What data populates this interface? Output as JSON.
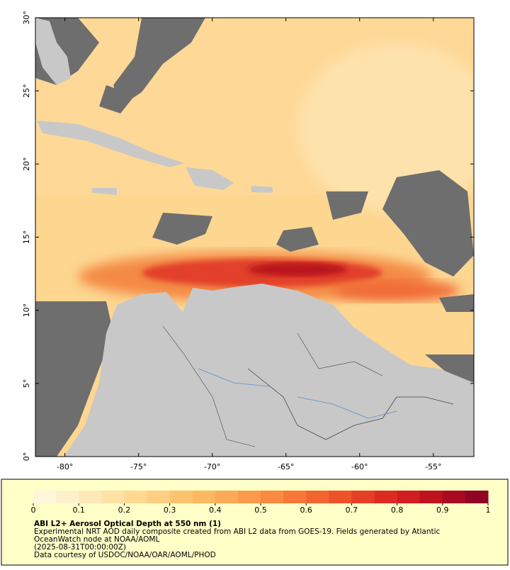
{
  "map": {
    "xlim": [
      -82,
      -52.25
    ],
    "ylim": [
      0,
      30
    ],
    "xticks": [
      {
        "value": -80,
        "label": "-80°"
      },
      {
        "value": -75,
        "label": "-75°"
      },
      {
        "value": -70,
        "label": "-70°"
      },
      {
        "value": -65,
        "label": "-65°"
      },
      {
        "value": -60,
        "label": "-60°"
      },
      {
        "value": -55,
        "label": "-55°"
      }
    ],
    "yticks": [
      {
        "value": 0,
        "label": "0°"
      },
      {
        "value": 5,
        "label": "5°"
      },
      {
        "value": 10,
        "label": "10°"
      },
      {
        "value": 15,
        "label": "15°"
      },
      {
        "value": 20,
        "label": "20°"
      },
      {
        "value": 25,
        "label": "25°"
      },
      {
        "value": 30,
        "label": "30°"
      }
    ]
  },
  "colorbar": {
    "lim": [
      0,
      1
    ],
    "ticks": [
      0,
      0.1,
      0.2,
      0.3,
      0.4,
      0.5,
      0.6,
      0.7,
      0.8,
      0.9,
      1
    ],
    "colors": [
      "#fff6dc",
      "#fff0cc",
      "#ffe9b8",
      "#ffe2a4",
      "#ffd992",
      "#fecf82",
      "#fdc470",
      "#fdb862",
      "#fcaa55",
      "#fb9a4a",
      "#fa8a40",
      "#f77838",
      "#f36530",
      "#ee522a",
      "#e63f26",
      "#dc2c22",
      "#cf1d20",
      "#be121f",
      "#a80a22",
      "#900524"
    ]
  },
  "caption": {
    "title": "ABI L2+ Aerosol Optical Depth at 550 nm (1)",
    "lines": [
      "Experimental NRT AOD daily composite created from ABI L2 data from GOES-19. Fields generated by Atlantic",
      "OceanWatch node at NOAA/AOML",
      "(2025-08-31T00:00:00Z)",
      "Data courtesy of USDOC/NOAA/OAR/AOML/PHOD"
    ]
  }
}
